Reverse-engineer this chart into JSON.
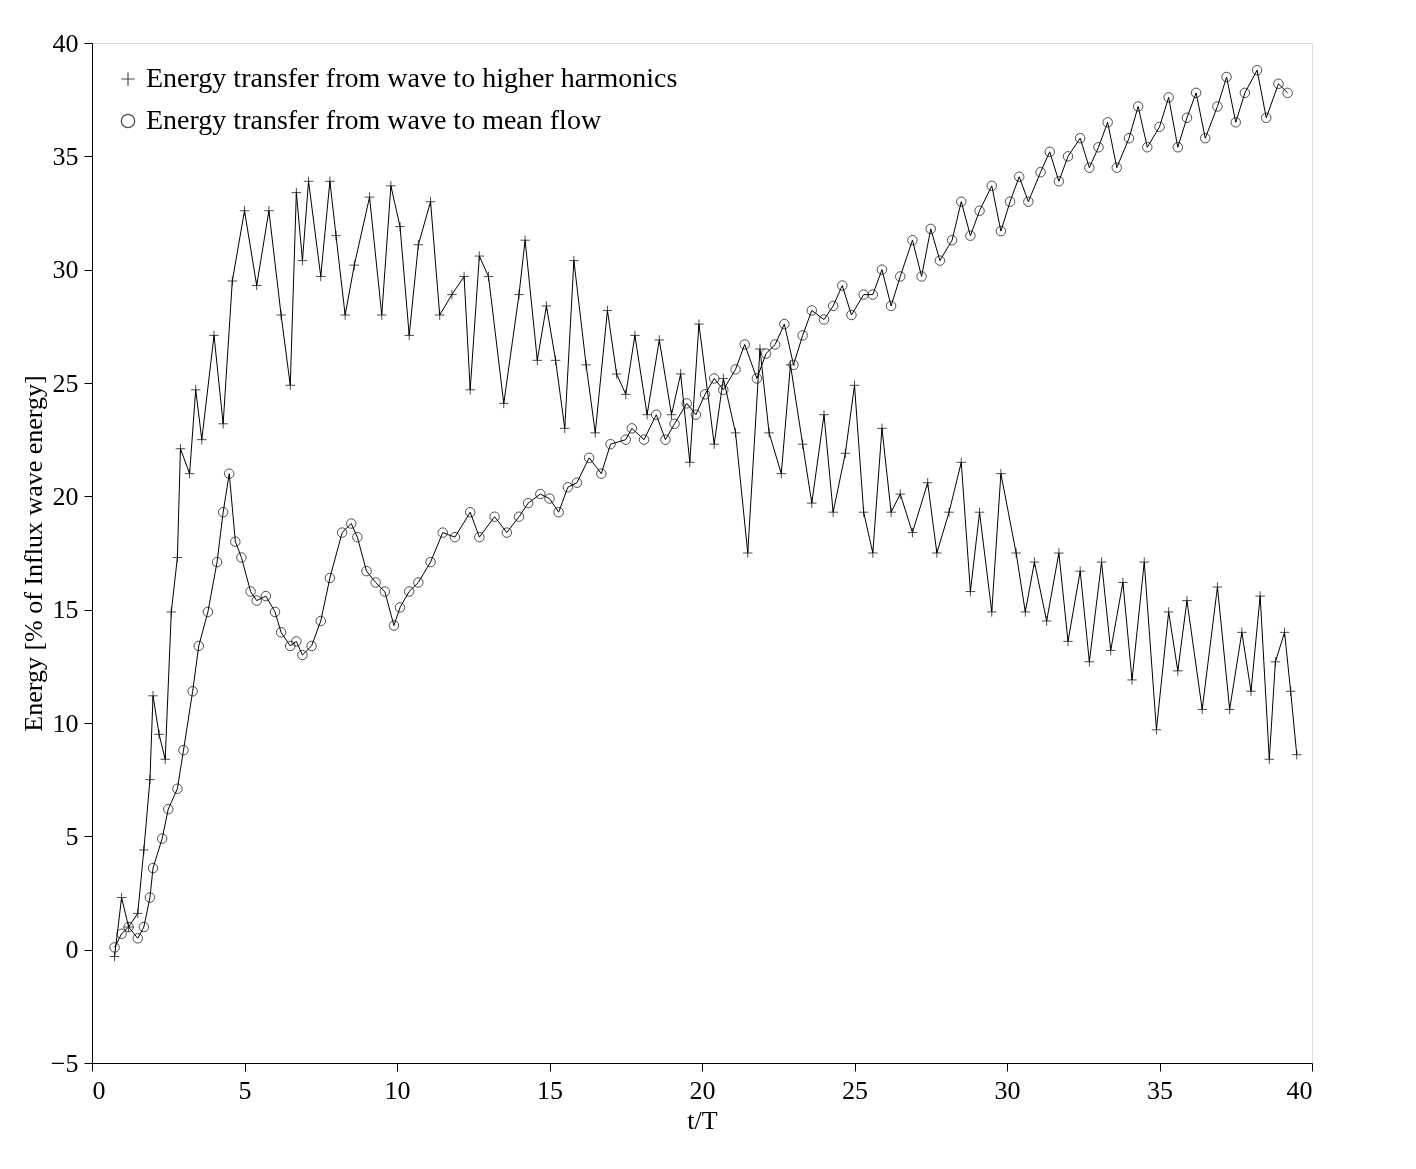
{
  "chart_data": {
    "type": "line",
    "xlabel": "t/T",
    "ylabel": "Energy [% of Influx wave energy]",
    "xlim": [
      0,
      40
    ],
    "ylim": [
      -5,
      40
    ],
    "xticks": [
      0,
      5,
      10,
      15,
      20,
      25,
      30,
      35,
      40
    ],
    "yticks": [
      -5,
      0,
      5,
      10,
      15,
      20,
      25,
      30,
      35,
      40
    ],
    "grid": false,
    "legend": "top left",
    "line_style": "solid",
    "series": [
      {
        "name": "Energy transfer from wave to higher harmonics",
        "color": "#000000",
        "marker": "cross",
        "x": [
          0.74,
          0.97,
          1.2,
          1.5,
          1.7,
          1.9,
          2.0,
          2.2,
          2.4,
          2.6,
          2.8,
          2.9,
          3.2,
          3.4,
          3.6,
          4.0,
          4.3,
          4.6,
          5.0,
          5.4,
          5.8,
          6.2,
          6.5,
          6.7,
          6.9,
          7.1,
          7.5,
          7.8,
          8.0,
          8.3,
          8.6,
          9.1,
          9.5,
          9.8,
          10.1,
          10.4,
          10.7,
          11.1,
          11.4,
          11.8,
          12.2,
          12.4,
          12.7,
          13.0,
          13.5,
          14.0,
          14.2,
          14.6,
          14.9,
          15.2,
          15.5,
          15.8,
          16.2,
          16.5,
          16.9,
          17.2,
          17.5,
          17.8,
          18.2,
          18.6,
          19.0,
          19.3,
          19.6,
          19.9,
          20.4,
          20.7,
          21.1,
          21.5,
          21.9,
          22.2,
          22.6,
          22.9,
          23.3,
          23.6,
          24.0,
          24.3,
          24.7,
          25.0,
          25.3,
          25.6,
          25.9,
          26.2,
          26.5,
          26.9,
          27.4,
          27.7,
          28.1,
          28.5,
          28.8,
          29.1,
          29.5,
          29.8,
          30.3,
          30.6,
          30.9,
          31.3,
          31.7,
          32.0,
          32.4,
          32.7,
          33.1,
          33.4,
          33.8,
          34.1,
          34.5,
          34.9,
          35.3,
          35.6,
          35.9,
          36.4,
          36.9,
          37.3,
          37.7,
          38.0,
          38.3,
          38.6,
          38.8,
          39.1,
          39.3,
          39.5
        ],
        "values": [
          -0.3,
          2.3,
          1.0,
          1.6,
          4.4,
          7.5,
          11.2,
          9.5,
          8.4,
          14.9,
          17.3,
          22.1,
          21.0,
          24.7,
          22.5,
          27.1,
          23.2,
          29.5,
          32.6,
          29.3,
          32.6,
          28.0,
          24.9,
          33.4,
          30.4,
          33.9,
          29.7,
          33.9,
          31.5,
          28.0,
          30.2,
          33.2,
          28.0,
          33.7,
          31.9,
          27.1,
          31.1,
          33.0,
          28.0,
          28.9,
          29.7,
          24.7,
          30.6,
          29.7,
          24.1,
          28.9,
          31.3,
          26.0,
          28.4,
          26.0,
          23.0,
          30.4,
          25.8,
          22.8,
          28.2,
          25.4,
          24.5,
          27.1,
          23.6,
          26.9,
          23.6,
          25.4,
          21.5,
          27.6,
          22.3,
          25.2,
          22.8,
          17.5,
          26.5,
          22.8,
          21.0,
          25.8,
          22.3,
          19.7,
          23.6,
          19.3,
          21.9,
          24.9,
          19.3,
          17.5,
          23.0,
          19.3,
          20.1,
          18.4,
          20.6,
          17.5,
          19.3,
          21.5,
          15.8,
          19.3,
          14.9,
          21.0,
          17.5,
          14.9,
          17.1,
          14.5,
          17.5,
          13.6,
          16.7,
          12.7,
          17.1,
          13.2,
          16.2,
          11.9,
          17.1,
          9.7,
          14.9,
          12.3,
          15.4,
          10.6,
          16.0,
          10.6,
          14.0,
          11.4,
          15.6,
          8.4,
          12.7,
          14.0,
          11.4,
          8.6
        ]
      },
      {
        "name": "Energy transfer from wave to mean flow",
        "color": "#000000",
        "marker": "circle",
        "x": [
          0.74,
          0.97,
          1.2,
          1.5,
          1.7,
          1.9,
          2.0,
          2.3,
          2.5,
          2.8,
          3.0,
          3.3,
          3.5,
          3.8,
          4.1,
          4.3,
          4.5,
          4.7,
          4.9,
          5.2,
          5.4,
          5.7,
          6.0,
          6.2,
          6.5,
          6.7,
          6.9,
          7.2,
          7.5,
          7.8,
          8.2,
          8.5,
          8.7,
          9.0,
          9.3,
          9.6,
          9.9,
          10.1,
          10.4,
          10.7,
          11.1,
          11.5,
          11.9,
          12.4,
          12.7,
          13.2,
          13.6,
          14.0,
          14.3,
          14.7,
          15.0,
          15.3,
          15.6,
          15.9,
          16.3,
          16.7,
          17.0,
          17.5,
          17.7,
          18.1,
          18.5,
          18.8,
          19.1,
          19.5,
          19.8,
          20.1,
          20.4,
          20.7,
          21.1,
          21.4,
          21.8,
          22.1,
          22.4,
          22.7,
          23.0,
          23.3,
          23.6,
          24.0,
          24.3,
          24.6,
          24.9,
          25.3,
          25.6,
          25.9,
          26.2,
          26.5,
          26.9,
          27.2,
          27.5,
          27.8,
          28.2,
          28.5,
          28.8,
          29.1,
          29.5,
          29.8,
          30.1,
          30.4,
          30.7,
          31.1,
          31.4,
          31.7,
          32.0,
          32.4,
          32.7,
          33.0,
          33.3,
          33.6,
          34.0,
          34.3,
          34.6,
          35.0,
          35.3,
          35.6,
          35.9,
          36.2,
          36.5,
          36.9,
          37.2,
          37.5,
          37.8,
          38.2,
          38.5,
          38.9,
          39.2
        ],
        "values": [
          0.1,
          0.7,
          1.0,
          0.5,
          1.0,
          2.3,
          3.6,
          4.9,
          6.2,
          7.1,
          8.8,
          11.4,
          13.4,
          14.9,
          17.1,
          19.3,
          21.0,
          18.0,
          17.3,
          15.8,
          15.4,
          15.6,
          14.9,
          14.0,
          13.4,
          13.6,
          13.0,
          13.4,
          14.5,
          16.4,
          18.4,
          18.8,
          18.2,
          16.7,
          16.2,
          15.8,
          14.3,
          15.1,
          15.8,
          16.2,
          17.1,
          18.4,
          18.2,
          19.3,
          18.2,
          19.1,
          18.4,
          19.1,
          19.7,
          20.1,
          19.9,
          19.3,
          20.4,
          20.6,
          21.7,
          21.0,
          22.3,
          22.5,
          23.0,
          22.5,
          23.6,
          22.5,
          23.2,
          24.1,
          23.6,
          24.5,
          25.2,
          24.7,
          25.6,
          26.7,
          25.2,
          26.3,
          26.7,
          27.6,
          25.8,
          27.1,
          28.2,
          27.8,
          28.4,
          29.3,
          28.0,
          28.9,
          28.9,
          30.0,
          28.4,
          29.7,
          31.3,
          29.7,
          31.8,
          30.4,
          31.3,
          33.0,
          31.5,
          32.6,
          33.7,
          31.7,
          33.0,
          34.1,
          33.0,
          34.3,
          35.2,
          33.9,
          35.0,
          35.8,
          34.5,
          35.4,
          36.5,
          34.5,
          35.8,
          37.2,
          35.4,
          36.3,
          37.6,
          35.4,
          36.7,
          37.8,
          35.8,
          37.2,
          38.5,
          36.5,
          37.8,
          38.8,
          36.7,
          38.2,
          37.8
        ]
      }
    ]
  }
}
